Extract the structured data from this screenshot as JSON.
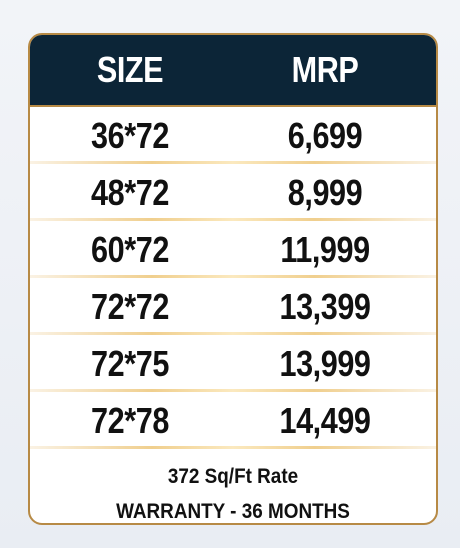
{
  "table": {
    "header": [
      "SIZE",
      "MRP"
    ],
    "rows": [
      [
        "36*72",
        "6,699"
      ],
      [
        "48*72",
        "8,999"
      ],
      [
        "60*72",
        "11,999"
      ],
      [
        "72*72",
        "13,399"
      ],
      [
        "72*75",
        "13,999"
      ],
      [
        "72*78",
        "14,499"
      ]
    ]
  },
  "footer": [
    "372 Sq/Ft Rate",
    "WARRANTY - 36 MONTHS"
  ]
}
